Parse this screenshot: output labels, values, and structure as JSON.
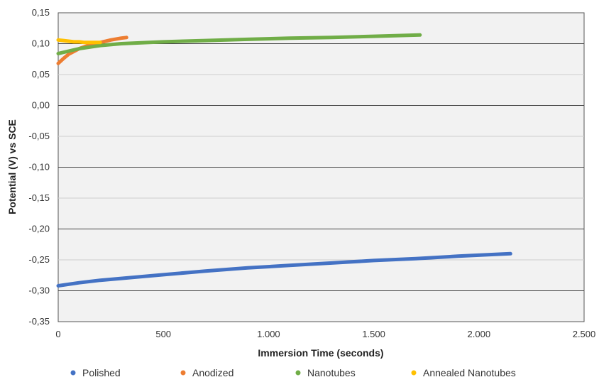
{
  "chart_data": {
    "type": "line",
    "xlabel": "Immersion Time (seconds)",
    "ylabel": "Potential (V) vs SCE",
    "xlim": [
      0,
      2500
    ],
    "ylim": [
      -0.35,
      0.15
    ],
    "x_ticks": [
      0,
      500,
      1000,
      1500,
      2000,
      2500
    ],
    "x_tick_labels": [
      "0",
      "500",
      "1.000",
      "1.500",
      "2.000",
      "2.500"
    ],
    "y_ticks": [
      0.15,
      0.1,
      0.05,
      0.0,
      -0.05,
      -0.1,
      -0.15,
      -0.2,
      -0.25,
      -0.3,
      -0.35
    ],
    "y_tick_labels": [
      "0,15",
      "0,10",
      "0,05",
      "0,00",
      "-0,05",
      "-0,10",
      "-0,15",
      "-0,20",
      "-0,25",
      "-0,30",
      "-0,35"
    ],
    "grid": true,
    "legend_position": "bottom",
    "series": [
      {
        "name": "Polished",
        "color": "#4472C4",
        "x": [
          0,
          100,
          200,
          300,
          500,
          700,
          900,
          1100,
          1300,
          1500,
          1700,
          1900,
          2150
        ],
        "y": [
          -0.292,
          -0.287,
          -0.283,
          -0.28,
          -0.274,
          -0.268,
          -0.263,
          -0.259,
          -0.255,
          -0.251,
          -0.248,
          -0.244,
          -0.24
        ]
      },
      {
        "name": "Anodized",
        "color": "#ED7D31",
        "x": [
          0,
          25,
          50,
          100,
          150,
          200,
          250,
          300,
          325
        ],
        "y": [
          0.068,
          0.076,
          0.083,
          0.092,
          0.098,
          0.102,
          0.106,
          0.109,
          0.11
        ]
      },
      {
        "name": "Nanotubes",
        "color": "#70AD47",
        "x": [
          0,
          100,
          200,
          300,
          500,
          700,
          900,
          1100,
          1300,
          1500,
          1720
        ],
        "y": [
          0.084,
          0.092,
          0.097,
          0.1,
          0.103,
          0.105,
          0.107,
          0.109,
          0.11,
          0.112,
          0.114
        ]
      },
      {
        "name": "Annealed Nanotubes",
        "color": "#FFC000",
        "x": [
          0,
          25,
          50,
          75,
          100,
          125,
          150,
          175,
          200
        ],
        "y": [
          0.106,
          0.105,
          0.104,
          0.103,
          0.103,
          0.102,
          0.102,
          0.102,
          0.102
        ]
      }
    ]
  }
}
